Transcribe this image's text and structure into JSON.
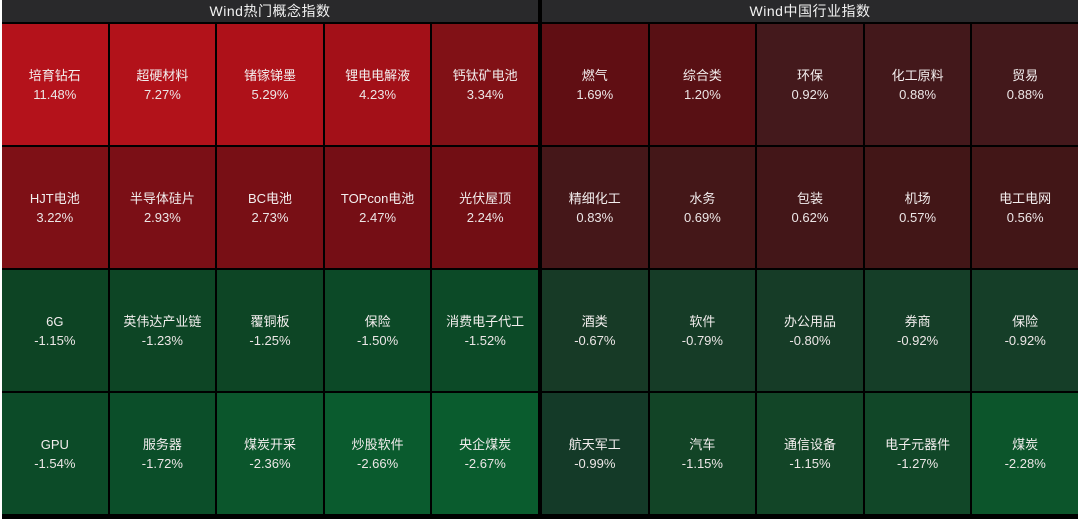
{
  "colors": {
    "page_edge": "#ffffff",
    "board_background": "#000000",
    "header_background": "#29292b",
    "header_text": "#f2f2f2",
    "cell_text": "#f3eeee",
    "gain_strong": "#b4121b",
    "loss_strong": "#0a5c2e"
  },
  "chart_data": [
    {
      "type": "heatmap",
      "title": "Wind热门概念指数",
      "rows": 4,
      "cols": 5,
      "value_unit": "%",
      "color_rule": "red = gain (brighter = larger gain), green = loss (brighter = larger loss)",
      "cells": [
        {
          "name": "培育钻石",
          "change_pct": 11.48,
          "label": "11.48%",
          "color": "#b4121b"
        },
        {
          "name": "超硬材料",
          "change_pct": 7.27,
          "label": "7.27%",
          "color": "#b2121a"
        },
        {
          "name": "锗镓锑墨",
          "change_pct": 5.29,
          "label": "5.29%",
          "color": "#ae1119"
        },
        {
          "name": "锂电电解液",
          "change_pct": 4.23,
          "label": "4.23%",
          "color": "#a31018"
        },
        {
          "name": "钙钛矿电池",
          "change_pct": 3.34,
          "label": "3.34%",
          "color": "#811116"
        },
        {
          "name": "HJT电池",
          "change_pct": 3.22,
          "label": "3.22%",
          "color": "#7e1016"
        },
        {
          "name": "半导体硅片",
          "change_pct": 2.93,
          "label": "2.93%",
          "color": "#7b0f16"
        },
        {
          "name": "BC电池",
          "change_pct": 2.73,
          "label": "2.73%",
          "color": "#780f15"
        },
        {
          "name": "TOPcon电池",
          "change_pct": 2.47,
          "label": "2.47%",
          "color": "#750e15"
        },
        {
          "name": "光伏屋顶",
          "change_pct": 2.24,
          "label": "2.24%",
          "color": "#720e14"
        },
        {
          "name": "6G",
          "change_pct": -1.15,
          "label": "-1.15%",
          "color": "#0d4424"
        },
        {
          "name": "英伟达产业链",
          "change_pct": -1.23,
          "label": "-1.23%",
          "color": "#0d4525"
        },
        {
          "name": "覆铜板",
          "change_pct": -1.25,
          "label": "-1.25%",
          "color": "#0d4525"
        },
        {
          "name": "保险",
          "change_pct": -1.5,
          "label": "-1.50%",
          "color": "#0c4927"
        },
        {
          "name": "消费电子代工",
          "change_pct": -1.52,
          "label": "-1.52%",
          "color": "#0c4a27"
        },
        {
          "name": "GPU",
          "change_pct": -1.54,
          "label": "-1.54%",
          "color": "#0c4b28"
        },
        {
          "name": "服务器",
          "change_pct": -1.72,
          "label": "-1.72%",
          "color": "#0b4e29"
        },
        {
          "name": "煤炭开采",
          "change_pct": -2.36,
          "label": "-2.36%",
          "color": "#0b562c"
        },
        {
          "name": "炒股软件",
          "change_pct": -2.66,
          "label": "-2.66%",
          "color": "#0a5b2e"
        },
        {
          "name": "央企煤炭",
          "change_pct": -2.67,
          "label": "-2.67%",
          "color": "#0a5c2e"
        }
      ]
    },
    {
      "type": "heatmap",
      "title": "Wind中国行业指数",
      "rows": 4,
      "cols": 5,
      "value_unit": "%",
      "color_rule": "red = gain (brighter = larger gain), green = loss (brighter = larger loss)",
      "cells": [
        {
          "name": "燃气",
          "change_pct": 1.69,
          "label": "1.69%",
          "color": "#600e13"
        },
        {
          "name": "综合类",
          "change_pct": 1.2,
          "label": "1.20%",
          "color": "#581014"
        },
        {
          "name": "环保",
          "change_pct": 0.92,
          "label": "0.92%",
          "color": "#44191c"
        },
        {
          "name": "化工原料",
          "change_pct": 0.88,
          "label": "0.88%",
          "color": "#43181b"
        },
        {
          "name": "贸易",
          "change_pct": 0.88,
          "label": "0.88%",
          "color": "#43181b"
        },
        {
          "name": "精细化工",
          "change_pct": 0.83,
          "label": "0.83%",
          "color": "#451719"
        },
        {
          "name": "水务",
          "change_pct": 0.69,
          "label": "0.69%",
          "color": "#441718"
        },
        {
          "name": "包装",
          "change_pct": 0.62,
          "label": "0.62%",
          "color": "#431618"
        },
        {
          "name": "机场",
          "change_pct": 0.57,
          "label": "0.57%",
          "color": "#421617"
        },
        {
          "name": "电工电网",
          "change_pct": 0.56,
          "label": "0.56%",
          "color": "#421617"
        },
        {
          "name": "酒类",
          "change_pct": -0.67,
          "label": "-0.67%",
          "color": "#173a26"
        },
        {
          "name": "软件",
          "change_pct": -0.79,
          "label": "-0.79%",
          "color": "#163c27"
        },
        {
          "name": "办公用品",
          "change_pct": -0.8,
          "label": "-0.80%",
          "color": "#163c27"
        },
        {
          "name": "券商",
          "change_pct": -0.92,
          "label": "-0.92%",
          "color": "#153e28"
        },
        {
          "name": "保险",
          "change_pct": -0.92,
          "label": "-0.92%",
          "color": "#153e28"
        },
        {
          "name": "航天军工",
          "change_pct": -0.99,
          "label": "-0.99%",
          "color": "#143a28"
        },
        {
          "name": "汽车",
          "change_pct": -1.15,
          "label": "-1.15%",
          "color": "#124426"
        },
        {
          "name": "通信设备",
          "change_pct": -1.15,
          "label": "-1.15%",
          "color": "#124527"
        },
        {
          "name": "电子元器件",
          "change_pct": -1.27,
          "label": "-1.27%",
          "color": "#114728"
        },
        {
          "name": "煤炭",
          "change_pct": -2.28,
          "label": "-2.28%",
          "color": "#0c552b"
        }
      ]
    }
  ]
}
